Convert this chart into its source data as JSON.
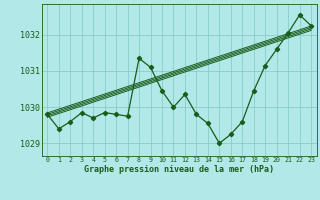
{
  "title": "Graphe pression niveau de la mer (hPa)",
  "background_color": "#b2e8e8",
  "grid_color": "#80c8c8",
  "line_color": "#1a5c1a",
  "hours": [
    0,
    1,
    2,
    3,
    4,
    5,
    6,
    7,
    8,
    9,
    10,
    11,
    12,
    13,
    14,
    15,
    16,
    17,
    18,
    19,
    20,
    21,
    22,
    23
  ],
  "pressure_main": [
    1029.8,
    1029.4,
    1029.6,
    1029.85,
    1029.7,
    1029.85,
    1029.8,
    1029.75,
    1031.35,
    1031.1,
    1030.45,
    1030.0,
    1030.35,
    1029.8,
    1029.55,
    1029.0,
    1029.25,
    1029.6,
    1030.45,
    1031.15,
    1031.6,
    1032.05,
    1032.55,
    1032.25
  ],
  "trends": [
    [
      [
        0,
        1029.84
      ],
      [
        23,
        1032.24
      ]
    ],
    [
      [
        0,
        1029.8
      ],
      [
        23,
        1032.2
      ]
    ],
    [
      [
        0,
        1029.76
      ],
      [
        23,
        1032.16
      ]
    ],
    [
      [
        0,
        1029.72
      ],
      [
        23,
        1032.12
      ]
    ]
  ],
  "ylim": [
    1028.65,
    1032.85
  ],
  "yticks": [
    1029,
    1030,
    1031,
    1032
  ],
  "xticks": [
    0,
    1,
    2,
    3,
    4,
    5,
    6,
    7,
    8,
    9,
    10,
    11,
    12,
    13,
    14,
    15,
    16,
    17,
    18,
    19,
    20,
    21,
    22,
    23
  ]
}
